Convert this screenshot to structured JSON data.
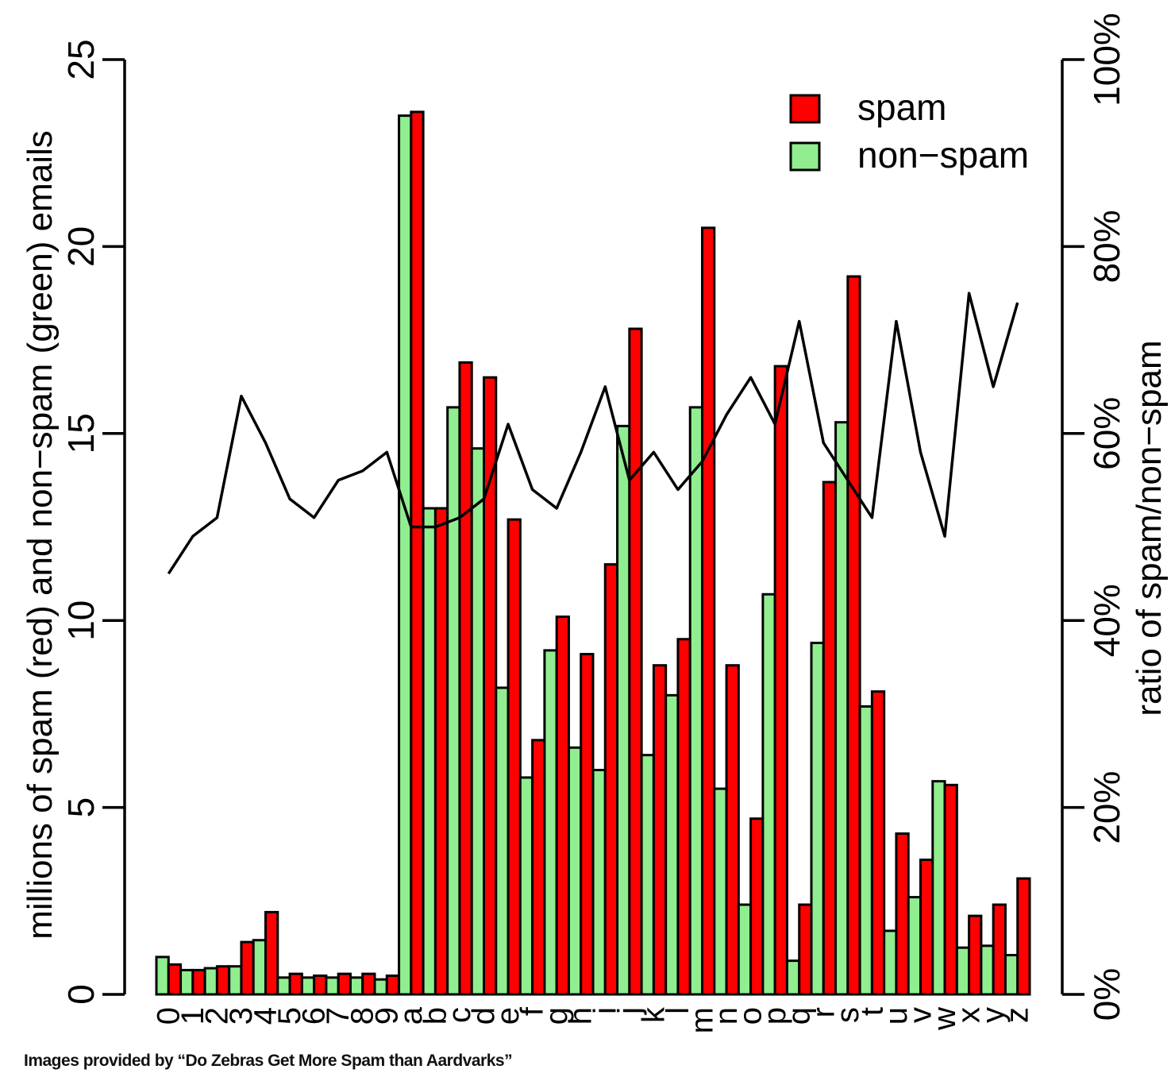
{
  "chart_data": {
    "type": "bar",
    "title": "",
    "ylabel": "millions of spam (red) and non−spam (green) emails",
    "y2label": "ratio of spam/non−spam",
    "ylim": [
      0,
      25
    ],
    "yticks": [
      "0",
      "5",
      "10",
      "15",
      "20",
      "25"
    ],
    "y2lim": [
      0,
      100
    ],
    "y2ticks": [
      "0%",
      "20%",
      "40%",
      "60%",
      "80%",
      "100%"
    ],
    "grid": false,
    "legend_position": "top-right",
    "categories": [
      "0",
      "1",
      "2",
      "3",
      "4",
      "5",
      "6",
      "7",
      "8",
      "9",
      "a",
      "b",
      "c",
      "d",
      "e",
      "f",
      "g",
      "h",
      "i",
      "j",
      "k",
      "l",
      "m",
      "n",
      "o",
      "p",
      "q",
      "r",
      "s",
      "t",
      "u",
      "v",
      "w",
      "x",
      "y",
      "z"
    ],
    "series": [
      {
        "name": "non−spam",
        "color": "#90EE90",
        "values": [
          1.0,
          0.65,
          0.7,
          0.75,
          1.45,
          0.45,
          0.45,
          0.45,
          0.45,
          0.4,
          23.5,
          13.0,
          15.7,
          14.6,
          8.2,
          5.8,
          9.2,
          6.6,
          6.0,
          15.2,
          6.4,
          8.0,
          15.7,
          5.5,
          2.4,
          10.7,
          0.9,
          9.4,
          15.3,
          7.7,
          1.7,
          2.6,
          5.7,
          1.25,
          1.3,
          1.05
        ]
      },
      {
        "name": "spam",
        "color": "#FF0000",
        "values": [
          0.8,
          0.65,
          0.75,
          1.4,
          2.2,
          0.55,
          0.5,
          0.55,
          0.55,
          0.5,
          23.6,
          13.0,
          16.9,
          16.5,
          12.7,
          6.8,
          10.1,
          9.1,
          11.5,
          17.8,
          8.8,
          9.5,
          20.5,
          8.8,
          4.7,
          16.8,
          2.4,
          13.7,
          19.2,
          8.1,
          4.3,
          3.6,
          5.6,
          2.1,
          2.4,
          3.1
        ]
      },
      {
        "name": "ratio",
        "type": "line",
        "color": "#000000",
        "axis": "right",
        "values": [
          45,
          49,
          51,
          64,
          59,
          53,
          51,
          55,
          56,
          58,
          50,
          50,
          51,
          53,
          61,
          54,
          52,
          58,
          65,
          55,
          58,
          54,
          57,
          62,
          66,
          61,
          72,
          59,
          55,
          51,
          72,
          58,
          49,
          75,
          65,
          74
        ]
      }
    ],
    "legend": [
      {
        "label": "spam",
        "color": "#FF0000"
      },
      {
        "label": "non−spam",
        "color": "#90EE90"
      }
    ]
  },
  "credit": "Images provided by “Do Zebras Get More Spam than Aardvarks”"
}
